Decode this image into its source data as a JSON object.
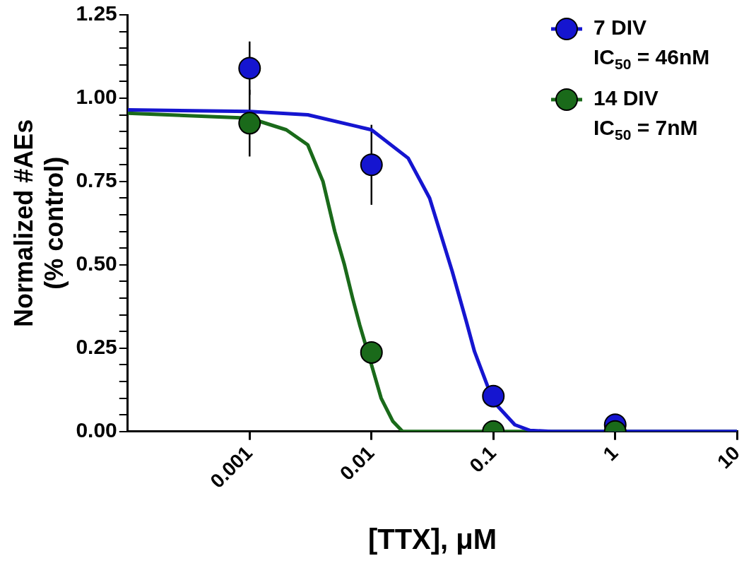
{
  "chart_data": {
    "type": "scatter",
    "xlabel": "[TTX], μM",
    "ylabel": "Normalized #AEs\n(% control)",
    "log": "x",
    "xlim": [
      0.0001,
      10
    ],
    "xticks": [
      0.001,
      0.01,
      0.1,
      1,
      10
    ],
    "ylim": [
      0,
      1.25
    ],
    "yticks": [
      {
        "value": 0,
        "label": "0.00"
      },
      {
        "value": 0.05,
        "label": null
      },
      {
        "value": 0.1,
        "label": null
      },
      {
        "value": 0.15,
        "label": null
      },
      {
        "value": 0.2,
        "label": null
      },
      {
        "value": 0.25,
        "label": "0.25"
      },
      {
        "value": 0.3,
        "label": null
      },
      {
        "value": 0.35,
        "label": null
      },
      {
        "value": 0.4,
        "label": null
      },
      {
        "value": 0.45,
        "label": null
      },
      {
        "value": 0.5,
        "label": "0.50"
      },
      {
        "value": 0.55,
        "label": null
      },
      {
        "value": 0.6,
        "label": null
      },
      {
        "value": 0.65,
        "label": null
      },
      {
        "value": 0.7,
        "label": null
      },
      {
        "value": 0.75,
        "label": "0.75"
      },
      {
        "value": 0.8,
        "label": null
      },
      {
        "value": 0.85,
        "label": null
      },
      {
        "value": 0.9,
        "label": null
      },
      {
        "value": 0.95,
        "label": null
      },
      {
        "value": 1,
        "label": "1.00"
      },
      {
        "value": 1.05,
        "label": null
      },
      {
        "value": 1.1,
        "label": null
      },
      {
        "value": 1.15,
        "label": null
      },
      {
        "value": 1.2,
        "label": null
      },
      {
        "value": 1.25,
        "label": "1.25"
      }
    ],
    "grid": false,
    "legend": "top right",
    "marker": "circle",
    "annotations": [
      "IC$_{50}$ = 46nM",
      "IC$_{50}$ = 7nM"
    ],
    "series": [
      {
        "type": "line",
        "color": "#1515d0",
        "marker": "none",
        "x": [
          0.0001,
          0.001,
          0.003,
          0.01,
          0.02,
          0.03,
          0.046,
          0.06,
          0.07,
          0.1,
          0.15,
          0.2,
          0.3,
          10
        ],
        "values": [
          0.965,
          0.96,
          0.95,
          0.905,
          0.82,
          0.7,
          0.48,
          0.33,
          0.24,
          0.09,
          0.02,
          0.003,
          0,
          0
        ]
      },
      {
        "type": "line",
        "color": "#1a6a1a",
        "marker": "none",
        "x": [
          0.0001,
          0.001,
          0.002,
          0.003,
          0.004,
          0.005,
          0.006,
          0.007,
          0.008,
          0.01,
          0.012,
          0.015,
          0.018,
          10
        ],
        "values": [
          0.955,
          0.94,
          0.905,
          0.86,
          0.75,
          0.6,
          0.5,
          0.4,
          0.32,
          0.2,
          0.1,
          0.03,
          0,
          0
        ]
      },
      {
        "name": "7 DIV",
        "color": "#1515d0",
        "x": [
          0.001,
          0.01,
          0.1,
          1
        ],
        "values": [
          1.09,
          0.8,
          0.106,
          0.02
        ],
        "errors": [
          0.08,
          0.12,
          null,
          null
        ]
      },
      {
        "name": "14 DIV",
        "color": "#1a6a1a",
        "x": [
          0.001,
          0.01,
          0.1,
          1
        ],
        "values": [
          0.925,
          0.237,
          0,
          0
        ],
        "errors": [
          0.1,
          0.03,
          null,
          null
        ]
      }
    ]
  }
}
